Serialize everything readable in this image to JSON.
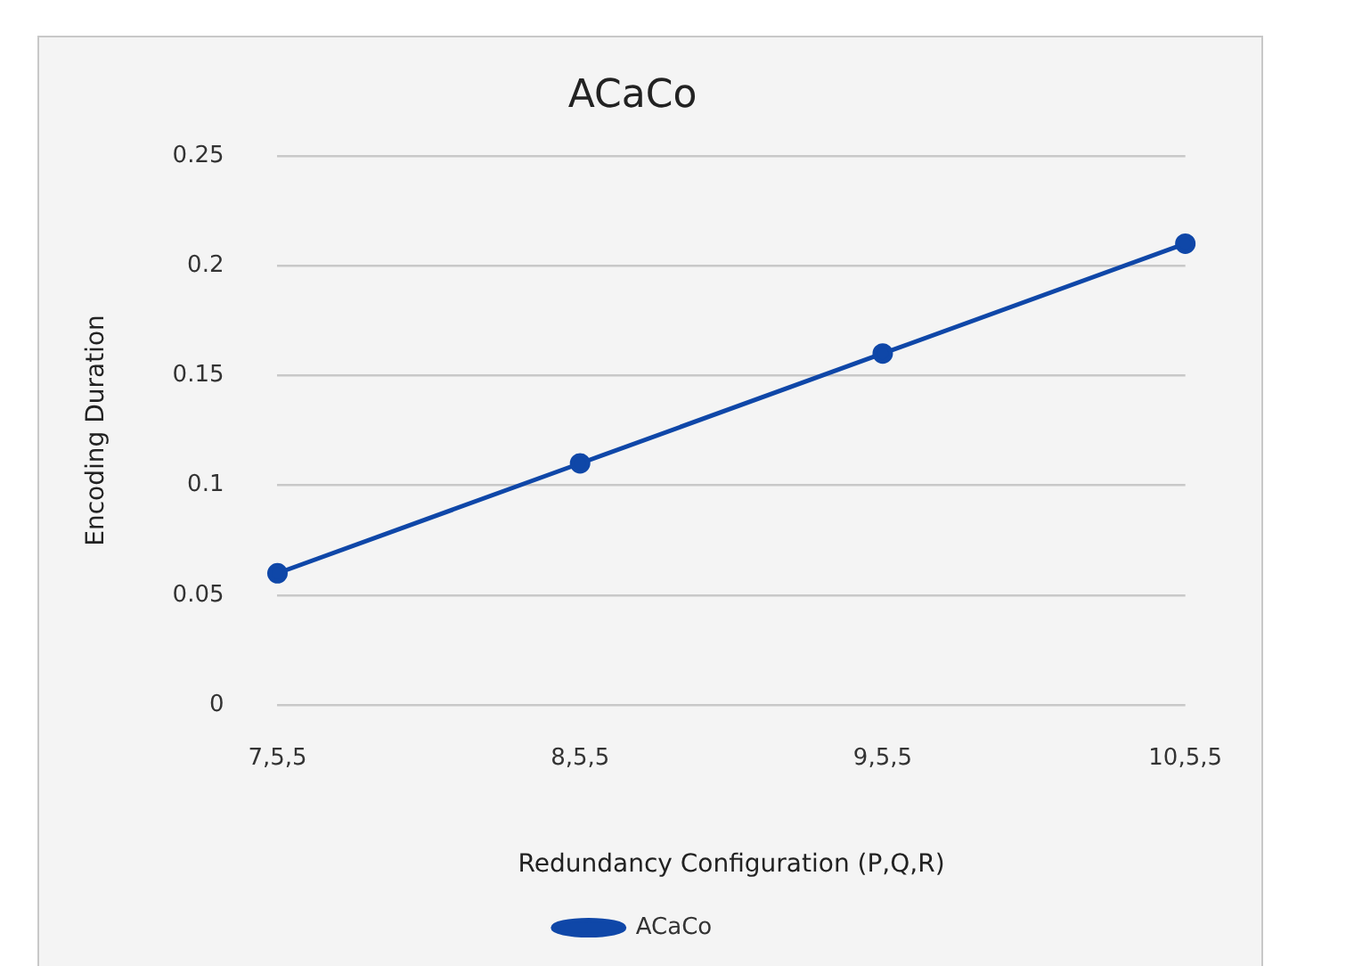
{
  "chart_data": {
    "type": "line",
    "title": "ACaCo",
    "xlabel": "Redundancy Configuration (P,Q,R)",
    "ylabel": "Encoding Duration",
    "categories": [
      "7,5,5",
      "8,5,5",
      "9,5,5",
      "10,5,5"
    ],
    "series": [
      {
        "name": "ACaCo",
        "color": "#0f47a8",
        "values": [
          0.06,
          0.11,
          0.16,
          0.21
        ]
      }
    ],
    "ylim": [
      0,
      0.25
    ],
    "yticks": [
      0,
      0.05,
      0.1,
      0.15,
      0.2,
      0.25
    ],
    "grid": "y",
    "legend": "bottom",
    "marker": "circle",
    "line_style": "solid"
  }
}
